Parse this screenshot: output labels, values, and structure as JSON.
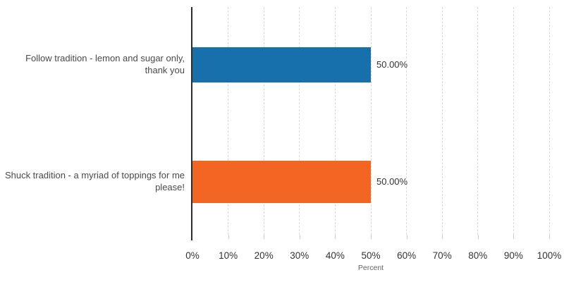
{
  "chart_data": {
    "type": "bar",
    "orientation": "horizontal",
    "title": "",
    "categories": [
      "Follow tradition - lemon and sugar only, thank you",
      "Shuck tradition - a myriad of toppings for me please!"
    ],
    "values": [
      50.0,
      50.0
    ],
    "value_labels": [
      "50.00%",
      "50.00%"
    ],
    "bar_colors": [
      "#1770ab",
      "#f26522"
    ],
    "xlabel": "Percent",
    "xlim": [
      0,
      100
    ],
    "x_tick_interval": 10,
    "x_tick_labels": [
      "0%",
      "10%",
      "20%",
      "30%",
      "40%",
      "50%",
      "60%",
      "70%",
      "80%",
      "90%",
      "100%"
    ],
    "grid": {
      "vertical": true,
      "style": "dashed"
    },
    "legend": "none",
    "colors": {
      "axis_line": "#2b2b2b",
      "gridline": "#d9d9d9",
      "tick": "#cccccc",
      "category_label": "#4a4a4a",
      "value_label": "#333333",
      "tick_label": "#333333",
      "axis_title": "#666666",
      "background": "#ffffff"
    }
  }
}
